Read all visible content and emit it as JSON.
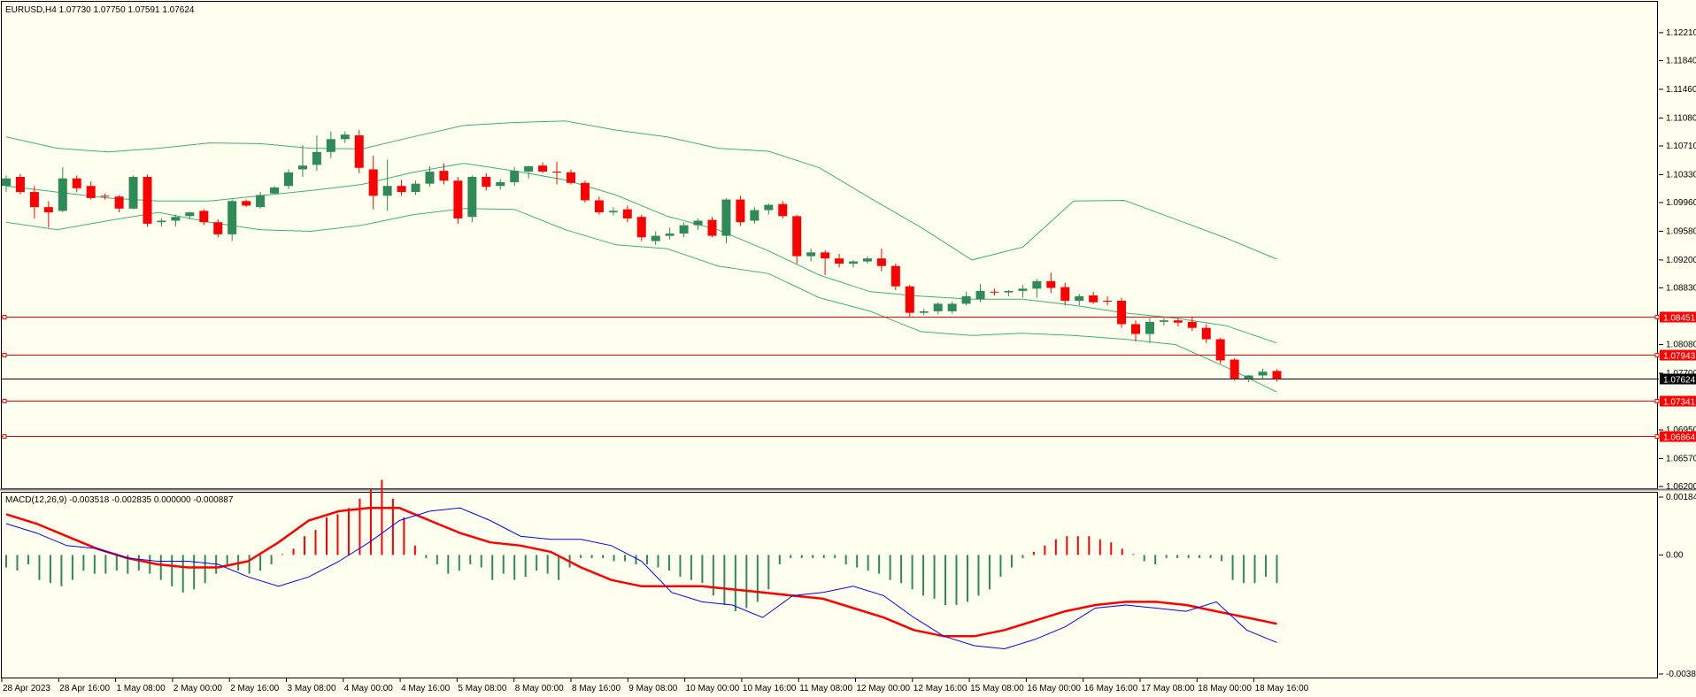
{
  "header": {
    "symbol_line": "EURUSD,H4  1.07730 1.07750 1.07591 1.07624",
    "macd_line": "MACD(12,26,9) -0.003518 -0.002835 0.000000 -0.000887"
  },
  "colors": {
    "background": "#FFFFF0",
    "bull": "#2E8B57",
    "bear": "#FF0000",
    "bands": "#3CB371",
    "hline": "#FF0000",
    "current": "#000000",
    "macd_line": "#0000FF",
    "signal_line": "#FF0000"
  },
  "chart_data": [
    {
      "type": "candlestick",
      "title": "EURUSD,H4",
      "ylim": [
        1.062,
        1.12385
      ],
      "y_ticks": [
        "1.12210",
        "1.11840",
        "1.11460",
        "1.11080",
        "1.10710",
        "1.10330",
        "1.09960",
        "1.09580",
        "1.09200",
        "1.08830",
        "1.08080",
        "1.07700",
        "1.06950",
        "1.06570",
        "1.06200"
      ],
      "x_labels": [
        "28 Apr 2023",
        "28 Apr 16:00",
        "1 May 08:00",
        "2 May 00:00",
        "2 May 16:00",
        "3 May 08:00",
        "4 May 00:00",
        "4 May 16:00",
        "5 May 08:00",
        "8 May 00:00",
        "8 May 16:00",
        "9 May 08:00",
        "10 May 00:00",
        "10 May 16:00",
        "11 May 08:00",
        "12 May 00:00",
        "12 May 16:00",
        "15 May 08:00",
        "16 May 00:00",
        "16 May 16:00",
        "17 May 08:00",
        "18 May 00:00",
        "18 May 16:00"
      ],
      "candles": [
        {
          "o": 1.1018,
          "h": 1.1032,
          "l": 1.101,
          "c": 1.1028
        },
        {
          "o": 1.103,
          "h": 1.1034,
          "l": 1.1007,
          "c": 1.101
        },
        {
          "o": 1.101,
          "h": 1.1018,
          "l": 1.0975,
          "c": 1.099
        },
        {
          "o": 1.099,
          "h": 1.0998,
          "l": 1.0963,
          "c": 1.0983
        },
        {
          "o": 1.0985,
          "h": 1.1043,
          "l": 1.0983,
          "c": 1.1028
        },
        {
          "o": 1.1028,
          "h": 1.1032,
          "l": 1.101,
          "c": 1.1015
        },
        {
          "o": 1.1018,
          "h": 1.1024,
          "l": 1.1,
          "c": 1.1002
        },
        {
          "o": 1.1005,
          "h": 1.1008,
          "l": 1.1,
          "c": 1.1004
        },
        {
          "o": 1.1004,
          "h": 1.1006,
          "l": 1.0983,
          "c": 1.0988
        },
        {
          "o": 1.0988,
          "h": 1.1032,
          "l": 1.0987,
          "c": 1.103
        },
        {
          "o": 1.103,
          "h": 1.1033,
          "l": 1.0964,
          "c": 1.0968
        },
        {
          "o": 1.097,
          "h": 1.0975,
          "l": 1.0964,
          "c": 1.0972
        },
        {
          "o": 1.0972,
          "h": 1.098,
          "l": 1.0964,
          "c": 1.0977
        },
        {
          "o": 1.0978,
          "h": 1.0984,
          "l": 1.0974,
          "c": 1.0983
        },
        {
          "o": 1.0985,
          "h": 1.0987,
          "l": 1.0966,
          "c": 1.097
        },
        {
          "o": 1.097,
          "h": 1.0974,
          "l": 1.095,
          "c": 1.0954
        },
        {
          "o": 1.0954,
          "h": 1.1,
          "l": 1.0945,
          "c": 1.0998
        },
        {
          "o": 1.0998,
          "h": 1.1,
          "l": 1.099,
          "c": 1.0992
        },
        {
          "o": 1.099,
          "h": 1.101,
          "l": 1.0988,
          "c": 1.1006
        },
        {
          "o": 1.1008,
          "h": 1.1018,
          "l": 1.1007,
          "c": 1.1016
        },
        {
          "o": 1.1018,
          "h": 1.104,
          "l": 1.1014,
          "c": 1.1036
        },
        {
          "o": 1.104,
          "h": 1.1072,
          "l": 1.103,
          "c": 1.1045
        },
        {
          "o": 1.1046,
          "h": 1.1085,
          "l": 1.1038,
          "c": 1.1063
        },
        {
          "o": 1.1063,
          "h": 1.109,
          "l": 1.1055,
          "c": 1.108
        },
        {
          "o": 1.108,
          "h": 1.109,
          "l": 1.1075,
          "c": 1.1086
        },
        {
          "o": 1.1085,
          "h": 1.1092,
          "l": 1.1035,
          "c": 1.1042
        },
        {
          "o": 1.104,
          "h": 1.1058,
          "l": 1.0987,
          "c": 1.1005
        },
        {
          "o": 1.1005,
          "h": 1.1053,
          "l": 1.0985,
          "c": 1.1018
        },
        {
          "o": 1.1018,
          "h": 1.1026,
          "l": 1.1005,
          "c": 1.101
        },
        {
          "o": 1.101,
          "h": 1.1025,
          "l": 1.1006,
          "c": 1.1021
        },
        {
          "o": 1.1021,
          "h": 1.1044,
          "l": 1.1017,
          "c": 1.1037
        },
        {
          "o": 1.1038,
          "h": 1.1048,
          "l": 1.102,
          "c": 1.1025
        },
        {
          "o": 1.1025,
          "h": 1.103,
          "l": 1.0968,
          "c": 1.0975
        },
        {
          "o": 1.0977,
          "h": 1.1032,
          "l": 1.097,
          "c": 1.103
        },
        {
          "o": 1.103,
          "h": 1.1035,
          "l": 1.1012,
          "c": 1.1017
        },
        {
          "o": 1.1018,
          "h": 1.1027,
          "l": 1.1013,
          "c": 1.1023
        },
        {
          "o": 1.1023,
          "h": 1.1043,
          "l": 1.1018,
          "c": 1.1038
        },
        {
          "o": 1.1037,
          "h": 1.1045,
          "l": 1.1028,
          "c": 1.1044
        },
        {
          "o": 1.1045,
          "h": 1.1049,
          "l": 1.1035,
          "c": 1.1037
        },
        {
          "o": 1.1037,
          "h": 1.105,
          "l": 1.102,
          "c": 1.1036
        },
        {
          "o": 1.1036,
          "h": 1.104,
          "l": 1.102,
          "c": 1.1022
        },
        {
          "o": 1.1022,
          "h": 1.1025,
          "l": 1.0996,
          "c": 1.0999
        },
        {
          "o": 1.0999,
          "h": 1.1004,
          "l": 1.098,
          "c": 1.0983
        },
        {
          "o": 1.0983,
          "h": 1.099,
          "l": 1.0979,
          "c": 1.0985
        },
        {
          "o": 1.0987,
          "h": 1.0992,
          "l": 1.097,
          "c": 1.0975
        },
        {
          "o": 1.0977,
          "h": 1.098,
          "l": 1.0945,
          "c": 1.095
        },
        {
          "o": 1.0945,
          "h": 1.0958,
          "l": 1.094,
          "c": 1.0952
        },
        {
          "o": 1.0952,
          "h": 1.0963,
          "l": 1.0947,
          "c": 1.0955
        },
        {
          "o": 1.0955,
          "h": 1.097,
          "l": 1.095,
          "c": 1.0966
        },
        {
          "o": 1.0966,
          "h": 1.0975,
          "l": 1.096,
          "c": 1.0972
        },
        {
          "o": 1.0973,
          "h": 1.0977,
          "l": 1.095,
          "c": 1.0952
        },
        {
          "o": 1.0952,
          "h": 1.1002,
          "l": 1.0942,
          "c": 1.1
        },
        {
          "o": 1.1,
          "h": 1.1005,
          "l": 1.0965,
          "c": 1.097
        },
        {
          "o": 1.0972,
          "h": 1.099,
          "l": 1.0968,
          "c": 1.0986
        },
        {
          "o": 1.0986,
          "h": 1.0995,
          "l": 1.098,
          "c": 1.0993
        },
        {
          "o": 1.0994,
          "h": 1.0998,
          "l": 1.0975,
          "c": 1.0978
        },
        {
          "o": 1.0978,
          "h": 1.098,
          "l": 1.0915,
          "c": 1.0925
        },
        {
          "o": 1.0925,
          "h": 1.0935,
          "l": 1.0918,
          "c": 1.093
        },
        {
          "o": 1.093,
          "h": 1.0933,
          "l": 1.09,
          "c": 1.0922
        },
        {
          "o": 1.0922,
          "h": 1.0928,
          "l": 1.091,
          "c": 1.0915
        },
        {
          "o": 1.0915,
          "h": 1.092,
          "l": 1.091,
          "c": 1.0918
        },
        {
          "o": 1.0918,
          "h": 1.0925,
          "l": 1.0915,
          "c": 1.0922
        },
        {
          "o": 1.0922,
          "h": 1.0935,
          "l": 1.0905,
          "c": 1.0912
        },
        {
          "o": 1.0912,
          "h": 1.0915,
          "l": 1.088,
          "c": 1.0885
        },
        {
          "o": 1.0885,
          "h": 1.0887,
          "l": 1.0845,
          "c": 1.085
        },
        {
          "o": 1.085,
          "h": 1.0855,
          "l": 1.0847,
          "c": 1.0852
        },
        {
          "o": 1.0852,
          "h": 1.0864,
          "l": 1.0848,
          "c": 1.0862
        },
        {
          "o": 1.0852,
          "h": 1.0865,
          "l": 1.0849,
          "c": 1.0862
        },
        {
          "o": 1.0862,
          "h": 1.0878,
          "l": 1.086,
          "c": 1.0872
        },
        {
          "o": 1.0868,
          "h": 1.0888,
          "l": 1.0864,
          "c": 1.0879
        },
        {
          "o": 1.0878,
          "h": 1.0882,
          "l": 1.0873,
          "c": 1.0877
        },
        {
          "o": 1.0877,
          "h": 1.088,
          "l": 1.0872,
          "c": 1.0879
        },
        {
          "o": 1.0879,
          "h": 1.0887,
          "l": 1.087,
          "c": 1.0882
        },
        {
          "o": 1.0882,
          "h": 1.0895,
          "l": 1.087,
          "c": 1.0892
        },
        {
          "o": 1.0892,
          "h": 1.0903,
          "l": 1.0876,
          "c": 1.0883
        },
        {
          "o": 1.0884,
          "h": 1.089,
          "l": 1.086,
          "c": 1.0866
        },
        {
          "o": 1.0866,
          "h": 1.0875,
          "l": 1.086,
          "c": 1.0872
        },
        {
          "o": 1.0873,
          "h": 1.0878,
          "l": 1.0862,
          "c": 1.0864
        },
        {
          "o": 1.0866,
          "h": 1.0872,
          "l": 1.086,
          "c": 1.0865
        },
        {
          "o": 1.0866,
          "h": 1.087,
          "l": 1.083,
          "c": 1.0835
        },
        {
          "o": 1.0835,
          "h": 1.084,
          "l": 1.0812,
          "c": 1.0822
        },
        {
          "o": 1.0822,
          "h": 1.0843,
          "l": 1.081,
          "c": 1.0838
        },
        {
          "o": 1.0838,
          "h": 1.0843,
          "l": 1.0833,
          "c": 1.084
        },
        {
          "o": 1.084,
          "h": 1.0843,
          "l": 1.0832,
          "c": 1.0837
        },
        {
          "o": 1.0838,
          "h": 1.0845,
          "l": 1.0826,
          "c": 1.083
        },
        {
          "o": 1.083,
          "h": 1.0835,
          "l": 1.081,
          "c": 1.0815
        },
        {
          "o": 1.0815,
          "h": 1.0817,
          "l": 1.0783,
          "c": 1.0787
        },
        {
          "o": 1.0788,
          "h": 1.079,
          "l": 1.076,
          "c": 1.0763
        },
        {
          "o": 1.0763,
          "h": 1.0768,
          "l": 1.0758,
          "c": 1.0767
        },
        {
          "o": 1.0767,
          "h": 1.0776,
          "l": 1.0763,
          "c": 1.0772
        },
        {
          "o": 1.0773,
          "h": 1.0775,
          "l": 1.0759,
          "c": 1.07624
        }
      ],
      "bollinger": {
        "upper": [
          1.1083,
          1.1068,
          1.1063,
          1.1068,
          1.1075,
          1.1074,
          1.1068,
          1.1067,
          1.1083,
          1.1098,
          1.1102,
          1.1104,
          1.1092,
          1.1083,
          1.1068,
          1.1064,
          1.1042,
          1.1002,
          1.0963,
          1.092,
          1.0937,
          1.0998,
          1.0999,
          1.0974,
          1.0949,
          1.0921
        ],
        "middle": [
          1.1018,
          1.101,
          1.1002,
          1.0998,
          1.0998,
          1.1005,
          1.1012,
          1.102,
          1.1036,
          1.1048,
          1.1038,
          1.1026,
          1.1006,
          1.0978,
          1.096,
          1.0932,
          1.09,
          1.0878,
          1.0872,
          1.0868,
          1.0868,
          1.086,
          1.085,
          1.0843,
          1.0833,
          1.081
        ],
        "lower": [
          1.097,
          1.096,
          1.0972,
          1.0983,
          1.097,
          1.096,
          1.0958,
          1.0966,
          1.098,
          1.0988,
          1.0987,
          1.096,
          1.094,
          1.0935,
          1.0912,
          1.0902,
          1.087,
          1.0852,
          1.0825,
          1.082,
          1.0823,
          1.082,
          1.0815,
          1.0808,
          1.0778,
          1.0745
        ]
      },
      "horizontal_levels": [
        "1.08451",
        "1.07943",
        "1.07341",
        "1.06864"
      ],
      "current_price": "1.07624"
    },
    {
      "type": "histogram+lines",
      "title": "MACD(12,26,9)",
      "ylim": [
        -0.003806,
        0.001849
      ],
      "y_ticks": [
        "0.001849",
        "0.00",
        "-0.003806"
      ],
      "histogram": [
        -0.0004,
        -0.0005,
        -0.0003,
        -0.0008,
        -0.0009,
        -0.001,
        -0.0008,
        -0.0005,
        -0.0006,
        -0.0006,
        -0.0005,
        -0.0006,
        -0.0005,
        -0.0006,
        -0.0008,
        -0.001,
        -0.0012,
        -0.0011,
        -0.0009,
        -0.0006,
        -0.0003,
        -0.0005,
        -0.0006,
        -0.0005,
        -0.0003,
        0.0,
        0.0002,
        0.0006,
        0.0008,
        0.0012,
        0.0013,
        0.0015,
        0.0018,
        0.0021,
        0.0024,
        0.0018,
        0.0012,
        0.0003,
        -0.0001,
        -0.0003,
        -0.0006,
        -0.0005,
        -0.0003,
        -0.0004,
        -0.0008,
        -0.0006,
        -0.0008,
        -0.0007,
        -0.0005,
        -0.0006,
        -0.0008,
        -0.0004,
        -0.0001,
        -0.0001,
        -0.0001,
        -0.0002,
        -0.0002,
        -0.0003,
        -0.0003,
        -0.0004,
        -0.0005,
        -0.0007,
        -0.0008,
        -0.0009,
        -0.0013,
        -0.0016,
        -0.0018,
        -0.0017,
        -0.0015,
        -0.0011,
        -0.0003,
        -0.0001,
        -0.0001,
        -0.0001,
        -0.0001,
        -0.0001,
        -0.0003,
        -0.0004,
        -0.0005,
        -0.0006,
        -0.0008,
        -0.0009,
        -0.0011,
        -0.0013,
        -0.0014,
        -0.0016,
        -0.0016,
        -0.0015,
        -0.0013,
        -0.0011,
        -0.0007,
        -0.0004,
        -0.0001,
        0.0001,
        0.0003,
        0.0005,
        0.0006,
        0.0006,
        0.0006,
        0.0005,
        0.0004,
        0.0002,
        0.0,
        -0.0002,
        -0.0003,
        -0.0001,
        -0.0001,
        -0.0001,
        -0.0001,
        -0.0001,
        -0.0002,
        -0.0008,
        -0.0009,
        -0.0009,
        -0.0007,
        -0.0009
      ],
      "macd": [
        0.001,
        0.0007,
        0.0003,
        0.0002,
        -0.0001,
        -0.0002,
        -0.0002,
        -0.0003,
        -0.0007,
        -0.001,
        -0.0007,
        -0.0002,
        0.0004,
        0.0011,
        0.0014,
        0.0015,
        0.0011,
        0.0006,
        0.0005,
        0.0005,
        0.0003,
        -0.0002,
        -0.0012,
        -0.0015,
        -0.0016,
        -0.002,
        -0.0013,
        -0.0012,
        -0.001,
        -0.0013,
        -0.002,
        -0.0026,
        -0.0029,
        -0.003,
        -0.0027,
        -0.0023,
        -0.0017,
        -0.0016,
        -0.0017,
        -0.0018,
        -0.0015,
        -0.0024,
        -0.0028
      ],
      "signal": [
        0.0013,
        0.001,
        0.0006,
        0.0002,
        -0.0001,
        -0.0003,
        -0.0004,
        -0.0004,
        -0.0002,
        0.0004,
        0.0011,
        0.0014,
        0.0015,
        0.0015,
        0.0011,
        0.0007,
        0.0004,
        0.0003,
        0.0001,
        -0.0004,
        -0.0008,
        -0.001,
        -0.001,
        -0.001,
        -0.0011,
        -0.0012,
        -0.0013,
        -0.0014,
        -0.0017,
        -0.002,
        -0.0024,
        -0.0026,
        -0.0026,
        -0.0024,
        -0.0021,
        -0.0018,
        -0.0016,
        -0.0015,
        -0.0015,
        -0.0016,
        -0.0018,
        -0.002,
        -0.0022
      ]
    }
  ]
}
